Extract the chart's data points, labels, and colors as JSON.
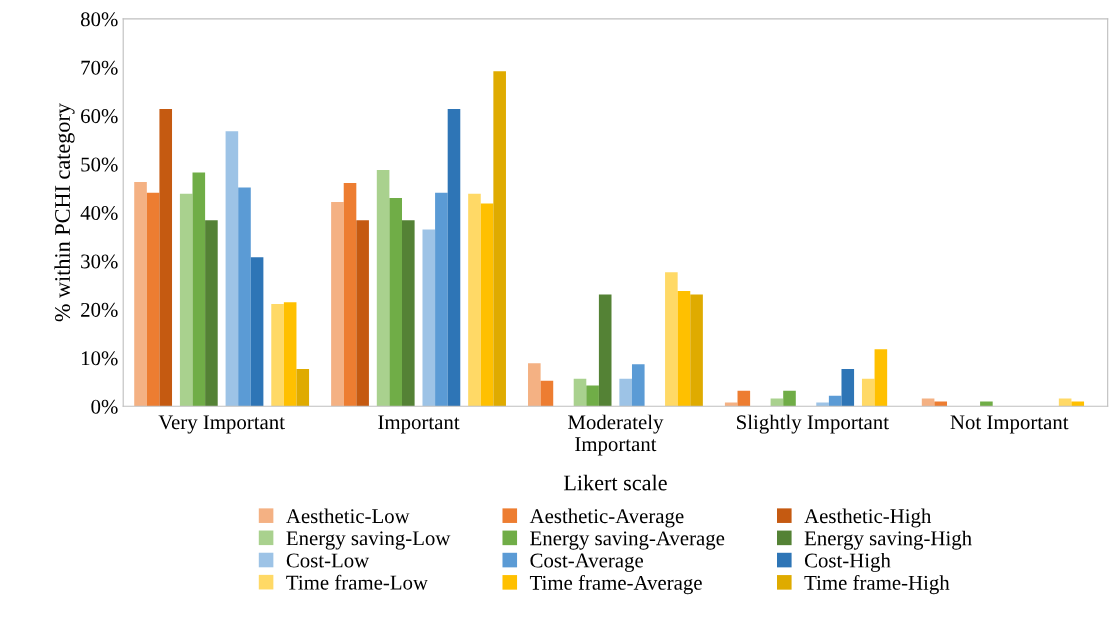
{
  "chart_data": {
    "type": "bar",
    "xlabel": "Likert scale",
    "ylabel": "% within PCHI category",
    "categories": [
      "Very Important",
      "Important",
      "Moderately\nImportant",
      "Slightly Important",
      "Not Important"
    ],
    "series": [
      {
        "name": "Aesthetic-Low",
        "color": "#f4b183",
        "values": [
          46.3,
          42.2,
          8.9,
          0.8,
          1.6
        ]
      },
      {
        "name": "Aesthetic-Average",
        "color": "#ed7d31",
        "values": [
          44.1,
          46.1,
          5.3,
          3.2,
          1.0
        ]
      },
      {
        "name": "Aesthetic-High",
        "color": "#c55a11",
        "values": [
          61.4,
          38.4,
          0,
          0,
          0
        ]
      },
      {
        "name": "Energy saving-Low",
        "color": "#a9d18e",
        "values": [
          43.9,
          48.8,
          5.7,
          1.6,
          0
        ]
      },
      {
        "name": "Energy saving-Average",
        "color": "#70ad47",
        "values": [
          48.3,
          43.0,
          4.3,
          3.2,
          1.0
        ]
      },
      {
        "name": "Energy saving-High",
        "color": "#548235",
        "values": [
          38.4,
          38.4,
          23.1,
          0,
          0
        ]
      },
      {
        "name": "Cost-Low",
        "color": "#9dc3e6",
        "values": [
          56.8,
          36.5,
          5.7,
          0.8,
          0
        ]
      },
      {
        "name": "Cost-Average",
        "color": "#5b9bd5",
        "values": [
          45.2,
          44.1,
          8.7,
          2.2,
          0
        ]
      },
      {
        "name": "Cost-High",
        "color": "#2e75b6",
        "values": [
          30.8,
          61.4,
          0,
          7.7,
          0
        ]
      },
      {
        "name": "Time frame-Low",
        "color": "#ffd966",
        "values": [
          21.1,
          43.9,
          27.7,
          5.7,
          1.6
        ]
      },
      {
        "name": "Time frame-Average",
        "color": "#ffc000",
        "values": [
          21.5,
          41.9,
          23.8,
          11.8,
          1.0
        ]
      },
      {
        "name": "Time frame-High",
        "color": "#dfab00",
        "values": [
          7.7,
          69.2,
          23.1,
          0,
          0
        ]
      }
    ],
    "ylim": [
      0,
      80
    ],
    "yticks": [
      {
        "value": 0,
        "label": "0%"
      },
      {
        "value": 10,
        "label": "10%"
      },
      {
        "value": 20,
        "label": "20%"
      },
      {
        "value": 30,
        "label": "30%"
      },
      {
        "value": 40,
        "label": "40%"
      },
      {
        "value": 50,
        "label": "50%"
      },
      {
        "value": 60,
        "label": "60%"
      },
      {
        "value": 70,
        "label": "70%"
      },
      {
        "value": 80,
        "label": "80%"
      }
    ],
    "grid": false,
    "legend": "bottom"
  }
}
